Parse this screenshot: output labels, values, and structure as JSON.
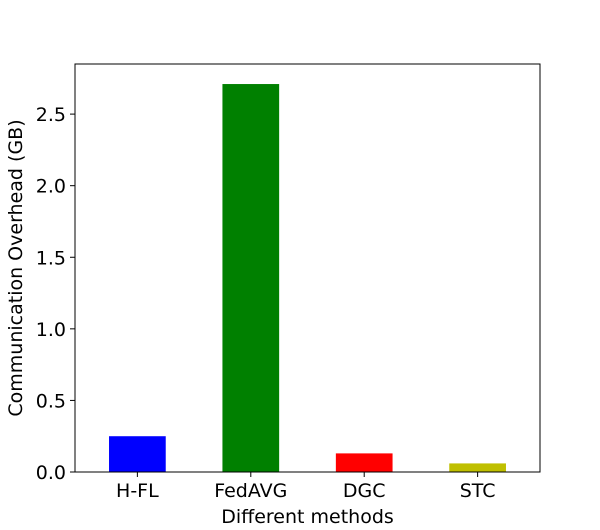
{
  "chart_data": {
    "type": "bar",
    "title": "",
    "xlabel": "Different methods",
    "ylabel": "Communication Overhead (GB)",
    "categories": [
      "H-FL",
      "FedAVG",
      "DGC",
      "STC"
    ],
    "values": [
      0.25,
      2.71,
      0.13,
      0.06
    ],
    "colors": [
      "#0000ff",
      "#008000",
      "#ff0000",
      "#bfbf00"
    ],
    "ylim": [
      0,
      2.85
    ],
    "yticks": [
      0.0,
      0.5,
      1.0,
      1.5,
      2.0,
      2.5
    ],
    "ytick_labels": [
      "0.0",
      "0.5",
      "1.0",
      "1.5",
      "2.0",
      "2.5"
    ],
    "grid": false,
    "legend": "none"
  }
}
